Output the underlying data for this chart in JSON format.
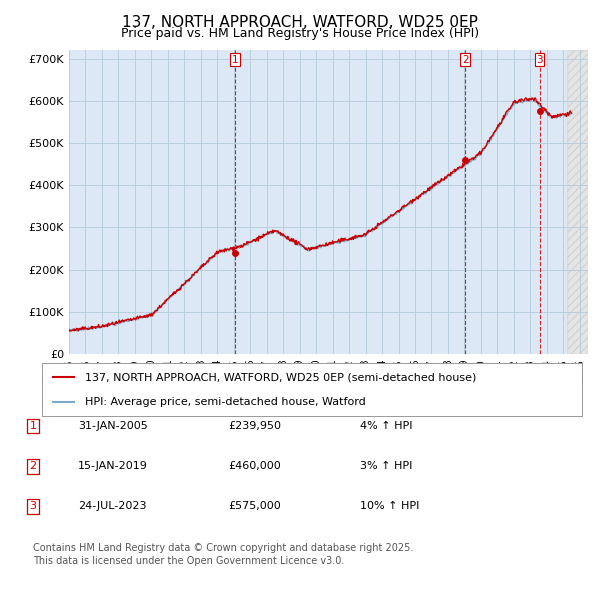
{
  "title": "137, NORTH APPROACH, WATFORD, WD25 0EP",
  "subtitle": "Price paid vs. HM Land Registry's House Price Index (HPI)",
  "ylabel_ticks": [
    "£0",
    "£100K",
    "£200K",
    "£300K",
    "£400K",
    "£500K",
    "£600K",
    "£700K"
  ],
  "ytick_values": [
    0,
    100000,
    200000,
    300000,
    400000,
    500000,
    600000,
    700000
  ],
  "ylim": [
    0,
    720000
  ],
  "xlim_start": 1995.0,
  "xlim_end": 2026.5,
  "plot_bg_color": "#dce8f5",
  "grid_color": "#b8cfe0",
  "hpi_line_color": "#7aabcc",
  "price_line_color": "#cc0000",
  "sale_marker_color": "#cc0000",
  "vline_color": "#cc0000",
  "legend_label_red": "137, NORTH APPROACH, WATFORD, WD25 0EP (semi-detached house)",
  "legend_label_blue": "HPI: Average price, semi-detached house, Watford",
  "sales": [
    {
      "label": "1",
      "date_year": 2005.08,
      "price": 239950,
      "hpi_pct": "4% ↑ HPI"
    },
    {
      "label": "2",
      "date_year": 2019.04,
      "price": 460000,
      "hpi_pct": "3% ↑ HPI"
    },
    {
      "label": "3",
      "date_year": 2023.56,
      "price": 575000,
      "hpi_pct": "10% ↑ HPI"
    }
  ],
  "sale_dates_display": [
    "31-JAN-2005",
    "15-JAN-2019",
    "24-JUL-2023"
  ],
  "sale_prices_display": [
    "£239,950",
    "£460,000",
    "£575,000"
  ],
  "footnote_line1": "Contains HM Land Registry data © Crown copyright and database right 2025.",
  "footnote_line2": "This data is licensed under the Open Government Licence v3.0.",
  "title_fontsize": 11,
  "subtitle_fontsize": 9,
  "tick_fontsize": 8,
  "legend_fontsize": 8,
  "table_fontsize": 8,
  "footer_fontsize": 7
}
